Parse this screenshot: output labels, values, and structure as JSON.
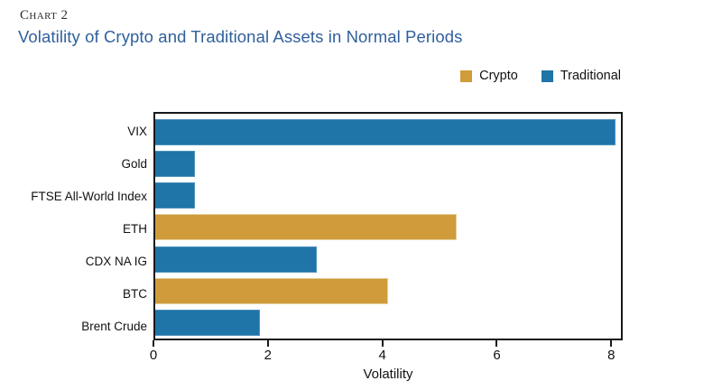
{
  "header": {
    "kicker": "Chart 2",
    "title": "Volatility of Crypto and Traditional Assets in Normal Periods"
  },
  "legend": [
    {
      "label": "Crypto",
      "color": "#cf9b3b"
    },
    {
      "label": "Traditional",
      "color": "#1f74a8"
    }
  ],
  "colors": {
    "crypto": "#cf9b3b",
    "traditional": "#1f74a8",
    "title": "#305f9c",
    "frame": "#191919"
  },
  "chart_data": {
    "type": "bar",
    "orientation": "horizontal",
    "title": "Volatility of Crypto and Traditional Assets in Normal Periods",
    "categories": [
      "VIX",
      "Gold",
      "FTSE All-World Index",
      "ETH",
      "CDX NA IG",
      "BTC",
      "Brent Crude"
    ],
    "values": [
      8.1,
      0.7,
      0.7,
      5.3,
      2.85,
      4.1,
      1.85
    ],
    "series_by_bar": [
      "Traditional",
      "Traditional",
      "Traditional",
      "Crypto",
      "Traditional",
      "Crypto",
      "Traditional"
    ],
    "xlabel": "Volatility",
    "ylabel": "",
    "xticks": [
      0,
      2,
      4,
      6,
      8
    ],
    "xlim": [
      0,
      8.2
    ],
    "grid": false,
    "legend_position": "top-right"
  }
}
